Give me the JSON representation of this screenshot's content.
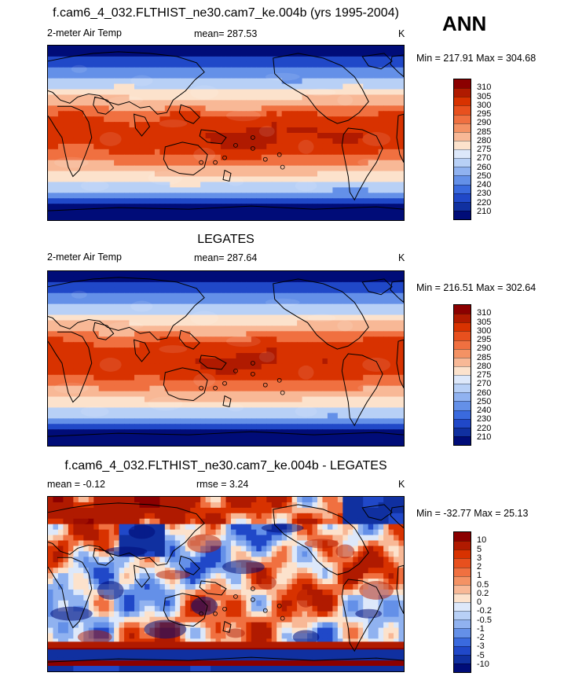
{
  "header": {
    "season": "ANN"
  },
  "panels": [
    {
      "id": "model",
      "title": "f.cam6_4_032.FLTHIST_ne30.cam7_ke.004b (yrs 1995-2004)",
      "left_label": "2-meter Air Temp",
      "center_label": "mean= 287.53",
      "right_label": "K",
      "minmax": "Min = 217.91 Max = 304.68",
      "colorbar": {
        "labels": [
          "310",
          "305",
          "300",
          "295",
          "290",
          "285",
          "280",
          "275",
          "270",
          "260",
          "250",
          "240",
          "230",
          "220",
          "210"
        ],
        "colors": [
          "#8b0000",
          "#b01a00",
          "#d83200",
          "#e8501e",
          "#f07040",
          "#f49264",
          "#f8b896",
          "#fce2cc",
          "#dde8fa",
          "#b8d0f6",
          "#90b2f0",
          "#6490e8",
          "#3a6ade",
          "#2048c8",
          "#1030a0",
          "#000c78"
        ]
      },
      "map": {
        "field": "model-surface-temperature"
      }
    },
    {
      "id": "obs",
      "title": "LEGATES",
      "left_label": "2-meter Air Temp",
      "center_label": "mean= 287.64",
      "right_label": "K",
      "minmax": "Min = 216.51 Max = 302.64",
      "colorbar": {
        "labels": [
          "310",
          "305",
          "300",
          "295",
          "290",
          "285",
          "280",
          "275",
          "270",
          "260",
          "250",
          "240",
          "230",
          "220",
          "210"
        ],
        "colors": [
          "#8b0000",
          "#b01a00",
          "#d83200",
          "#e8501e",
          "#f07040",
          "#f49264",
          "#f8b896",
          "#fce2cc",
          "#dde8fa",
          "#b8d0f6",
          "#90b2f0",
          "#6490e8",
          "#3a6ade",
          "#2048c8",
          "#1030a0",
          "#000c78"
        ]
      },
      "map": {
        "field": "observed-surface-temperature"
      }
    },
    {
      "id": "diff",
      "title": "f.cam6_4_032.FLTHIST_ne30.cam7_ke.004b - LEGATES",
      "left_label": "mean =  -0.12",
      "center_label": "rmse =   3.24",
      "right_label": "K",
      "minmax": "Min = -32.77 Max =  25.13",
      "colorbar": {
        "labels": [
          "10",
          "5",
          "3",
          "2",
          "1",
          "0.5",
          "0.2",
          "0",
          "-0.2",
          "-0.5",
          "-1",
          "-2",
          "-3",
          "-5",
          "-10"
        ],
        "colors": [
          "#8b0000",
          "#b01a00",
          "#d83200",
          "#e8501e",
          "#f07040",
          "#f49264",
          "#f8b896",
          "#fce2cc",
          "#dde8fa",
          "#b8d0f6",
          "#90b2f0",
          "#6490e8",
          "#3a6ade",
          "#2048c8",
          "#1030a0",
          "#000c78"
        ]
      },
      "map": {
        "field": "temperature-difference"
      }
    }
  ]
}
